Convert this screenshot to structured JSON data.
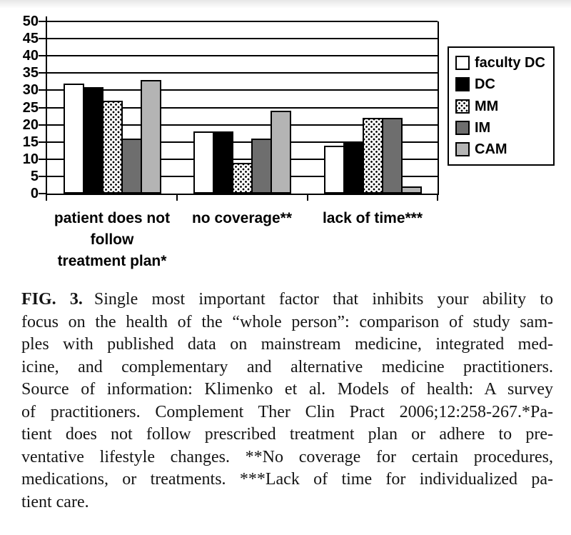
{
  "figure": {
    "caption": {
      "label": "FIG. 3.",
      "lines": [
        "Single most important factor that inhibits your ability to",
        "focus on the health of the “whole person”: comparison of study sam-",
        "ples with published data on mainstream medicine, integrated med-",
        "icine, and complementary and alternative medicine practitioners.",
        "Source of information: Klimenko et al. Models of health: A survey",
        "of practitioners. Complement Ther Clin Pract 2006;12:258-267.*Pa-",
        "tient does not follow prescribed treatment plan or adhere to pre-",
        "ventative lifestyle changes. **No coverage for certain procedures,",
        "medications, or treatments. ***Lack of time for individualized pa-",
        "tient care."
      ]
    }
  },
  "chart_data": {
    "type": "bar",
    "title": "",
    "xlabel": "",
    "ylabel": "",
    "categories": [
      "patient does not follow treatment plan*",
      "no coverage**",
      "lack of time***"
    ],
    "category_display_lines": [
      [
        "patient does not",
        "follow",
        "treatment plan*"
      ],
      [
        "no coverage**"
      ],
      [
        "lack of time***"
      ]
    ],
    "series": [
      {
        "name": "faculty DC",
        "values": [
          32,
          18,
          14
        ],
        "fill": "#ffffff",
        "pattern": "solid"
      },
      {
        "name": "DC",
        "values": [
          31,
          18,
          15
        ],
        "fill": "#000000",
        "pattern": "solid"
      },
      {
        "name": "MM",
        "values": [
          27,
          9,
          22
        ],
        "fill": "#ffffff",
        "pattern": "dots"
      },
      {
        "name": "IM",
        "values": [
          16,
          16,
          22
        ],
        "fill": "#6e6e6e",
        "pattern": "solid"
      },
      {
        "name": "CAM",
        "values": [
          33,
          24,
          2
        ],
        "fill": "#b4b4b4",
        "pattern": "solid"
      }
    ],
    "ylim": [
      0,
      50
    ],
    "ytick_step": 5,
    "grid": "horizontal",
    "gridline_color": "#000000",
    "bar_border_color": "#000000",
    "legend_position": "right"
  }
}
